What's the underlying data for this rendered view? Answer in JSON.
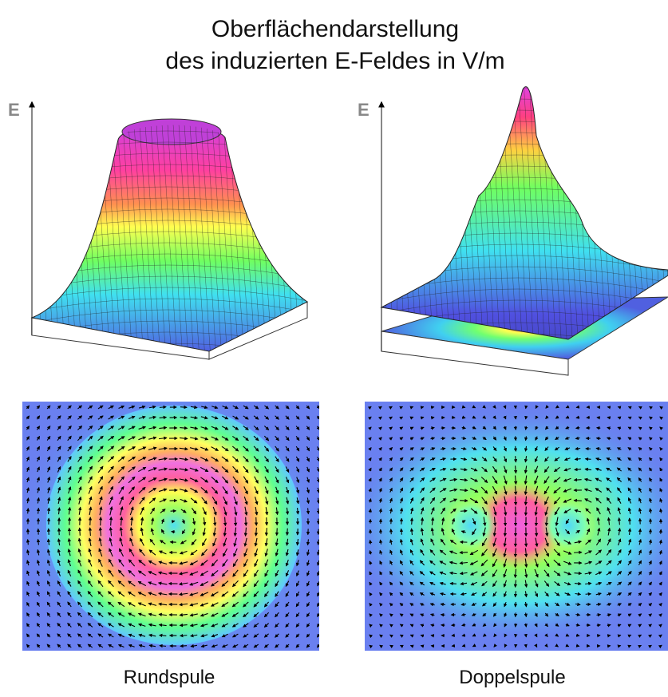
{
  "title": [
    "Oberflächendarstellung",
    "des induzierten E-Feldes in V/m"
  ],
  "panels": [
    {
      "axis_label": "E",
      "caption": "Rundspule"
    },
    {
      "axis_label": "E",
      "caption": "Doppelspule"
    }
  ]
}
